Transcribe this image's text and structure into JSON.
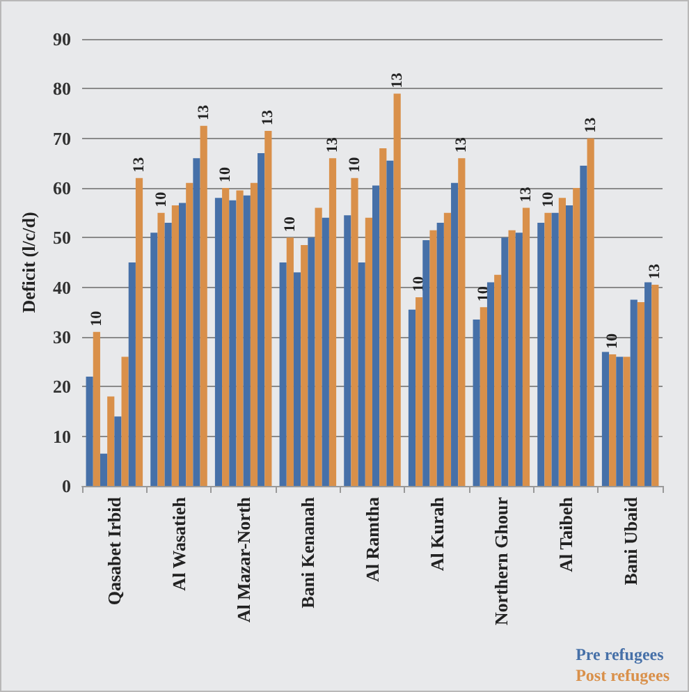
{
  "chart_data": {
    "type": "bar",
    "ylabel": "Deficit (l/c/d)",
    "categories": [
      "Qasabet Irbid",
      "Al Wasatieh",
      "Al Mazar-North",
      "Bani Kenanah",
      "Al Ramtha",
      "Al Kurah",
      "Northern Ghour",
      "Al Taibeh",
      "Bani Ubaid"
    ],
    "series": [
      {
        "name": "Pre refugees",
        "color": "#4670a8",
        "values": [
          22,
          51,
          58,
          45,
          54.5,
          35.5,
          33.5,
          53,
          27
        ]
      },
      {
        "name": "Post refugees",
        "color": "#d9904a",
        "values": [
          31,
          55,
          60,
          50,
          62,
          38,
          36,
          55,
          26.5
        ]
      },
      {
        "color": "#4670a8",
        "values": [
          6.5,
          53,
          57.5,
          43,
          45,
          49.5,
          41,
          55,
          26
        ]
      },
      {
        "color": "#d9904a",
        "values": [
          18,
          56.5,
          59.5,
          48.5,
          54,
          51.5,
          42.5,
          58,
          26
        ]
      },
      {
        "color": "#4670a8",
        "values": [
          14,
          57,
          58.5,
          50,
          60.5,
          53,
          50,
          56.5,
          37.5
        ]
      },
      {
        "color": "#d9904a",
        "values": [
          26,
          61,
          61,
          56,
          68,
          55,
          51.5,
          60,
          37
        ]
      },
      {
        "color": "#4670a8",
        "values": [
          45,
          66,
          67,
          54,
          65.5,
          61,
          51,
          64.5,
          41
        ]
      },
      {
        "color": "#d9904a",
        "values": [
          62,
          72.5,
          71.5,
          66,
          79,
          66,
          56,
          70,
          40.5
        ]
      }
    ],
    "annotations": [
      "10",
      "10",
      "10",
      "10",
      "10",
      "10",
      "10",
      "10",
      "10",
      "13",
      "13",
      "13",
      "13",
      "13",
      "13",
      "13",
      "13",
      "13"
    ],
    "ylim": [
      0,
      90
    ],
    "yticks": [
      0,
      10,
      20,
      30,
      40,
      50,
      60,
      70,
      80,
      90
    ],
    "grid": "y",
    "legend": "bottom right"
  }
}
